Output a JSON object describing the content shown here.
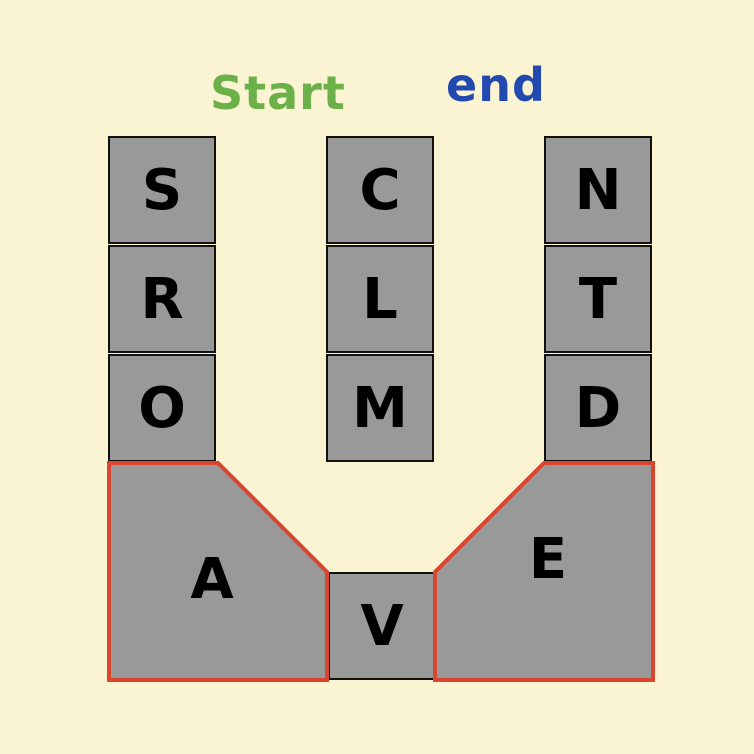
{
  "labels": {
    "start": "Start",
    "end": "end"
  },
  "colors": {
    "background": "#fbf4d2",
    "tile_fill": "#999999",
    "tile_border": "#111111",
    "highlight_border": "#d9452e",
    "start_text": "#6cb04a",
    "end_text": "#2249b0"
  },
  "columns": {
    "left": [
      "S",
      "R",
      "O"
    ],
    "middle": [
      "C",
      "L",
      "M"
    ],
    "right": [
      "N",
      "T",
      "D"
    ]
  },
  "bottom": {
    "left_shape": "A",
    "center_tile": "V",
    "right_shape": "E"
  }
}
